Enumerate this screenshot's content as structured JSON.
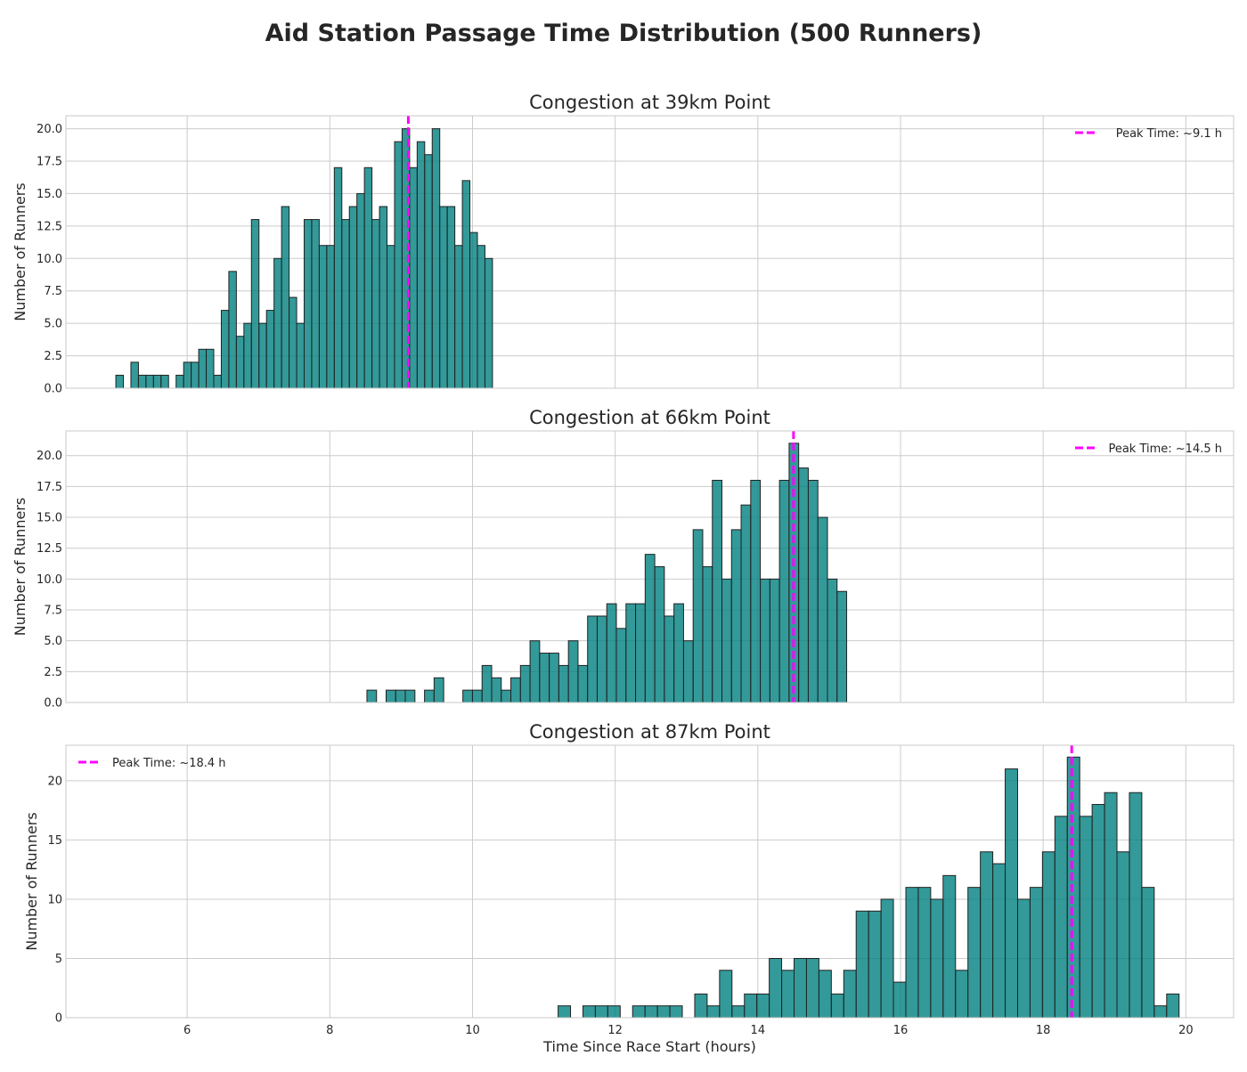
{
  "chart_data": {
    "title": "Aid Station Passage Time Distribution (500 Runners)",
    "xlabel": "Time Since Race Start (hours)",
    "xlim": [
      4.3,
      20.67
    ],
    "xticks": [
      6,
      8,
      10,
      12,
      14,
      16,
      18,
      20
    ],
    "grid": true,
    "bar_color": "#008080",
    "bar_edge_color": "#222222",
    "peak_line_color": "#ff00ff",
    "panels": [
      {
        "type": "bar",
        "title": "Congestion at 39km Point",
        "ylabel": "Number of Runners",
        "ylim": [
          0,
          21
        ],
        "yticks": [
          "0.0",
          "2.5",
          "5.0",
          "7.5",
          "10.0",
          "12.5",
          "15.0",
          "17.5",
          "20.0"
        ],
        "ytick_values": [
          0,
          2.5,
          5,
          7.5,
          10,
          12.5,
          15,
          17.5,
          20
        ],
        "bin_start": 5.0,
        "bin_width": 0.1056,
        "values": [
          1,
          0,
          2,
          1,
          1,
          1,
          1,
          0,
          1,
          2,
          2,
          3,
          3,
          1,
          6,
          9,
          4,
          5,
          13,
          5,
          6,
          10,
          14,
          7,
          5,
          13,
          13,
          11,
          11,
          17,
          13,
          14,
          15,
          17,
          13,
          14,
          11,
          19,
          20,
          17,
          19,
          18,
          20,
          14,
          14,
          11,
          16,
          12,
          11,
          10
        ],
        "peak": 9.1,
        "legend_label": "Peak Time: ~9.1 h",
        "legend_position": "upper right"
      },
      {
        "type": "bar",
        "title": "Congestion at 66km Point",
        "ylabel": "Number of Runners",
        "ylim": [
          0,
          22
        ],
        "yticks": [
          "0.0",
          "2.5",
          "5.0",
          "7.5",
          "10.0",
          "12.5",
          "15.0",
          "17.5",
          "20.0"
        ],
        "ytick_values": [
          0,
          2.5,
          5,
          7.5,
          10,
          12.5,
          15,
          17.5,
          20
        ],
        "bin_start": 8.52,
        "bin_width": 0.1345,
        "values": [
          1,
          0,
          1,
          1,
          1,
          0,
          1,
          2,
          0,
          0,
          1,
          1,
          3,
          2,
          1,
          2,
          3,
          5,
          4,
          4,
          3,
          5,
          3,
          7,
          7,
          8,
          6,
          8,
          8,
          12,
          11,
          7,
          8,
          5,
          14,
          11,
          18,
          10,
          14,
          16,
          18,
          10,
          10,
          18,
          21,
          19,
          18,
          15,
          10,
          9
        ],
        "peak": 14.5,
        "legend_label": "Peak Time: ~14.5 h",
        "legend_position": "upper right"
      },
      {
        "type": "bar",
        "title": "Congestion at 87km Point",
        "ylabel": "Number of Runners",
        "ylim": [
          0,
          23
        ],
        "yticks": [
          "0",
          "5",
          "10",
          "15",
          "20"
        ],
        "ytick_values": [
          0,
          5,
          10,
          15,
          20
        ],
        "bin_start": 11.2,
        "bin_width": 0.1741,
        "values": [
          1,
          0,
          1,
          1,
          1,
          0,
          1,
          1,
          1,
          1,
          0,
          2,
          1,
          4,
          1,
          2,
          2,
          5,
          4,
          5,
          5,
          4,
          2,
          4,
          9,
          9,
          10,
          3,
          11,
          11,
          10,
          12,
          4,
          11,
          14,
          13,
          21,
          10,
          11,
          14,
          17,
          22,
          17,
          18,
          19,
          14,
          19,
          11,
          1,
          2
        ],
        "peak": 18.4,
        "legend_label": "Peak Time: ~18.4 h",
        "legend_position": "upper left"
      }
    ]
  }
}
